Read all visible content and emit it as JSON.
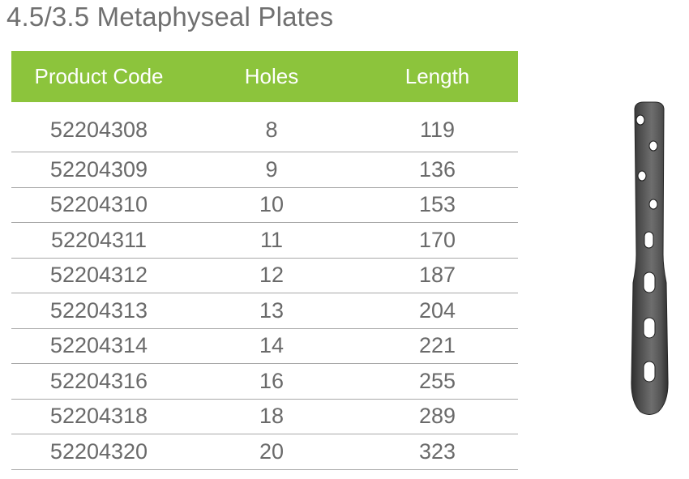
{
  "title": "4.5/3.5 Metaphyseal Plates",
  "table": {
    "headers": [
      "Product Code",
      "Holes",
      "Length"
    ],
    "rows": [
      [
        "52204308",
        "8",
        "119"
      ],
      [
        "52204309",
        "9",
        "136"
      ],
      [
        "52204310",
        "10",
        "153"
      ],
      [
        "52204311",
        "11",
        "170"
      ],
      [
        "52204312",
        "12",
        "187"
      ],
      [
        "52204313",
        "13",
        "204"
      ],
      [
        "52204314",
        "14",
        "221"
      ],
      [
        "52204316",
        "16",
        "255"
      ],
      [
        "52204318",
        "18",
        "289"
      ],
      [
        "52204320",
        "20",
        "323"
      ]
    ]
  },
  "colors": {
    "header_bg": "#8cc43c",
    "header_text": "#ffffff",
    "title_text": "#707070",
    "cell_text": "#6a6a6a",
    "row_border": "#a8a8a8"
  },
  "image": {
    "name": "metaphyseal-plate-image"
  }
}
